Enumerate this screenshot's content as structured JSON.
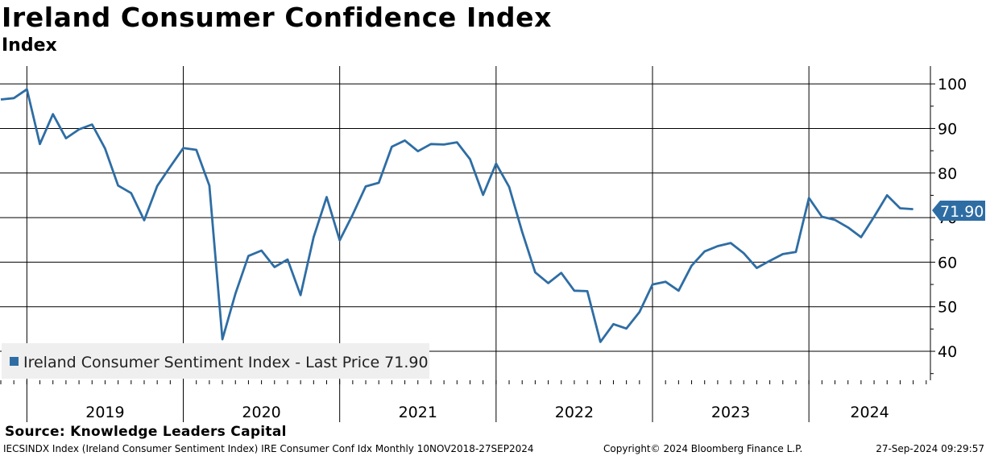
{
  "title": "Ireland Consumer Confidence Index",
  "subtitle": "Index",
  "source": "Source: Knowledge Leaders Capital",
  "footer": {
    "left": "IECSINDX Index (Ireland Consumer Sentiment Index) IRE Consumer Conf Idx  Monthly 10NOV2018-27SEP2024",
    "middle": "Copyright© 2024 Bloomberg Finance L.P.",
    "right": "27-Sep-2024 09:29:57"
  },
  "colors": {
    "line": "#2e6da4",
    "grid": "#000000",
    "legend_bg": "#efefef"
  },
  "chart_data": {
    "type": "line",
    "title": "Ireland Consumer Confidence Index",
    "ylabel": "Index",
    "ylim": [
      33.5,
      104
    ],
    "yticks": [
      40,
      50,
      60,
      70,
      80,
      90,
      100
    ],
    "ytick_labels": [
      "40",
      "50",
      "60",
      "70",
      "80",
      "90",
      "100"
    ],
    "year_labels": [
      "2019",
      "2020",
      "2021",
      "2022",
      "2023",
      "2024"
    ],
    "x_start": "2018-11",
    "x_end": "2024-10",
    "legend": "Ireland Consumer Sentiment Index - Last Price 71.90",
    "legend_position": "bottom-left",
    "last_value_label": "71.90",
    "series": [
      {
        "name": "Ireland Consumer Sentiment Index",
        "dates": [
          "2018-11",
          "2018-12",
          "2019-01",
          "2019-02",
          "2019-03",
          "2019-04",
          "2019-05",
          "2019-06",
          "2019-07",
          "2019-08",
          "2019-09",
          "2019-10",
          "2019-11",
          "2019-12",
          "2020-01",
          "2020-02",
          "2020-03",
          "2020-04",
          "2020-05",
          "2020-06",
          "2020-07",
          "2020-08",
          "2020-09",
          "2020-10",
          "2020-11",
          "2020-12",
          "2021-01",
          "2021-02",
          "2021-03",
          "2021-04",
          "2021-05",
          "2021-06",
          "2021-07",
          "2021-08",
          "2021-09",
          "2021-10",
          "2021-11",
          "2021-12",
          "2022-01",
          "2022-02",
          "2022-03",
          "2022-04",
          "2022-05",
          "2022-06",
          "2022-07",
          "2022-08",
          "2022-09",
          "2022-10",
          "2022-11",
          "2022-12",
          "2023-01",
          "2023-02",
          "2023-03",
          "2023-04",
          "2023-05",
          "2023-06",
          "2023-07",
          "2023-08",
          "2023-09",
          "2023-10",
          "2023-11",
          "2023-12",
          "2024-01",
          "2024-02",
          "2024-03",
          "2024-04",
          "2024-05",
          "2024-06",
          "2024-07",
          "2024-08",
          "2024-09"
        ],
        "values": [
          96.5,
          96.8,
          98.8,
          86.5,
          93.2,
          87.8,
          89.8,
          90.9,
          85.5,
          77.2,
          75.5,
          69.4,
          77.1,
          81.4,
          85.6,
          85.2,
          77.2,
          42.7,
          52.9,
          61.4,
          62.6,
          58.9,
          60.6,
          52.6,
          65.6,
          74.6,
          64.9,
          70.7,
          77.0,
          77.8,
          85.9,
          87.3,
          84.9,
          86.5,
          86.4,
          86.9,
          83.1,
          75.1,
          82.1,
          76.9,
          66.8,
          57.7,
          55.3,
          57.6,
          53.6,
          53.5,
          42.1,
          46.1,
          45.1,
          48.8,
          55.0,
          55.6,
          53.6,
          59.2,
          62.4,
          63.6,
          64.3,
          62.0,
          58.7,
          60.3,
          61.8,
          62.3,
          74.4,
          70.2,
          69.5,
          67.8,
          65.6,
          70.2,
          75.0,
          72.1,
          71.9
        ]
      }
    ]
  }
}
